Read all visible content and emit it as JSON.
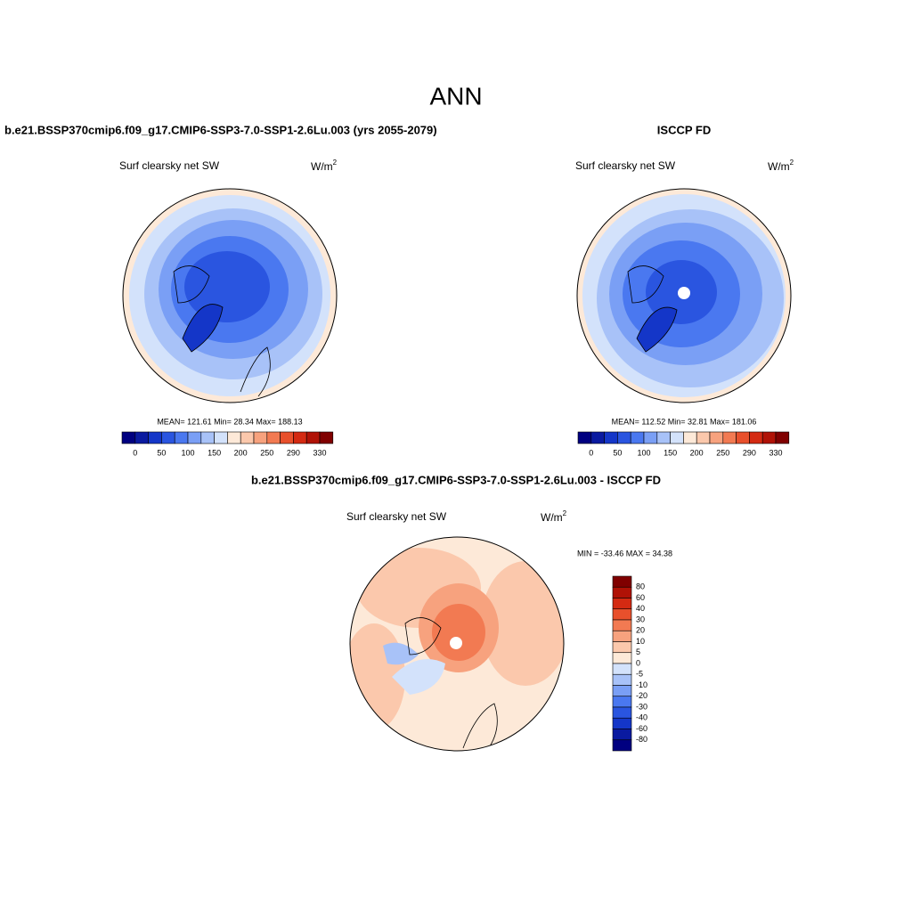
{
  "title": "ANN",
  "panels": [
    {
      "heading": "b.e21.BSSP370cmip6.f09_g17.CMIP6-SSP3-7.0-SSP1-2.6Lu.003 (yrs 2055-2079)",
      "variable": "Surf clearsky net SW",
      "units": "W/m",
      "units_sup": "2",
      "stats": "MEAN= 121.61  Min=  28.34  Max= 188.13",
      "colorbar_labels": [
        "0",
        "50",
        "100",
        "150",
        "200",
        "250",
        "290",
        "330"
      ]
    },
    {
      "heading": "ISCCP FD",
      "variable": "Surf clearsky net SW",
      "units": "W/m",
      "units_sup": "2",
      "stats": "MEAN= 112.52  Min=  32.81  Max= 181.06",
      "colorbar_labels": [
        "0",
        "50",
        "100",
        "150",
        "200",
        "250",
        "290",
        "330"
      ]
    },
    {
      "heading": "b.e21.BSSP370cmip6.f09_g17.CMIP6-SSP3-7.0-SSP1-2.6Lu.003 - ISCCP FD",
      "variable": "Surf clearsky net SW",
      "units": "W/m",
      "units_sup": "2",
      "stats": "MIN = -33.46 MAX =  34.38",
      "colorbar_labels": [
        "80",
        "60",
        "40",
        "30",
        "20",
        "10",
        "5",
        "0",
        "-5",
        "-10",
        "-20",
        "-30",
        "-40",
        "-60",
        "-80"
      ]
    }
  ],
  "colorbar_colors": [
    "#000080",
    "#0a1aa0",
    "#1436c8",
    "#2a55e0",
    "#4a78f0",
    "#7a9ff5",
    "#a8c2f8",
    "#d3e2fb",
    "#fde9d8",
    "#fbc8ac",
    "#f7a27e",
    "#f27a52",
    "#e8502c",
    "#d42a12",
    "#b01206",
    "#800000"
  ]
}
